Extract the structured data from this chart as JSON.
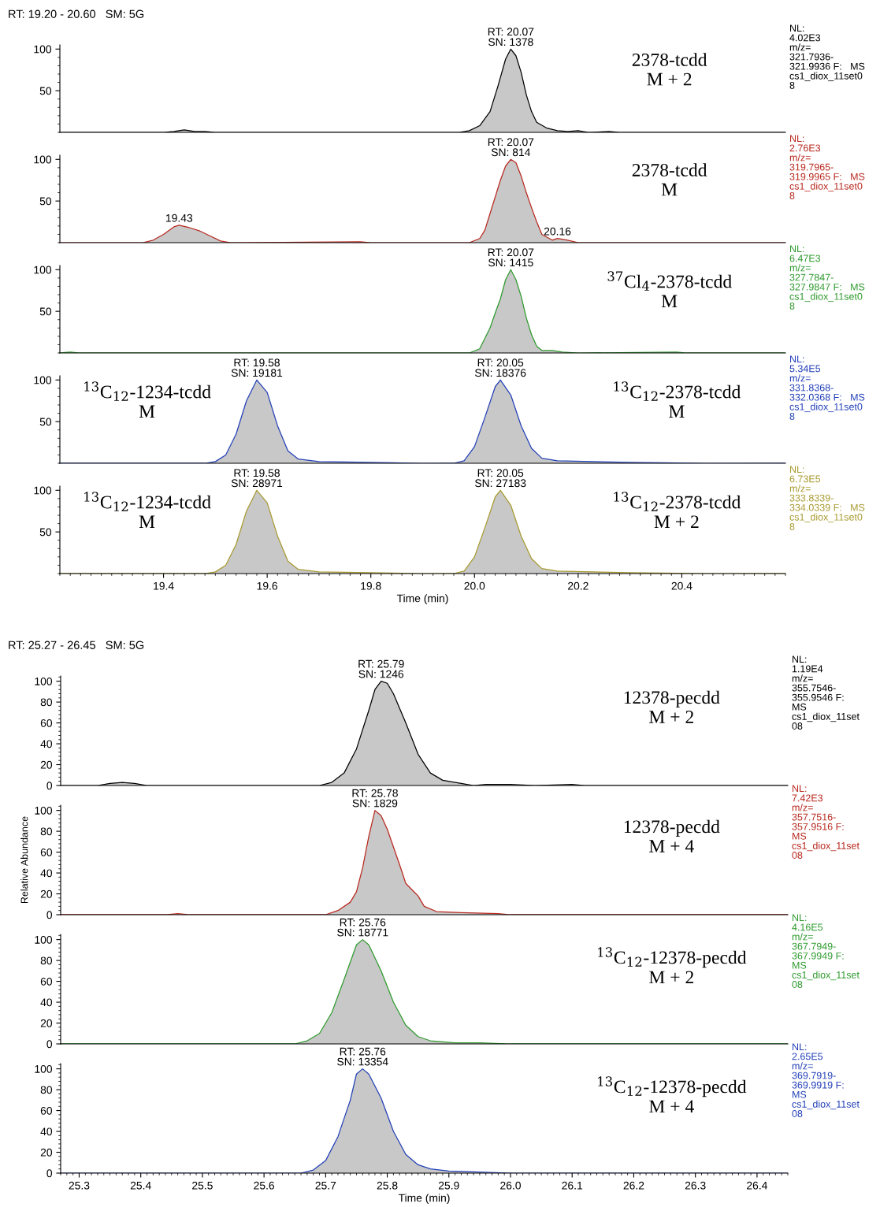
{
  "chart_data": [
    {
      "type": "area",
      "title": "RT: 19.20 - 20.60   SM: 5G",
      "xlim": [
        19.2,
        20.6
      ],
      "ylim": [
        0,
        105
      ],
      "yticks": [
        50,
        100
      ],
      "tick_labels": "y",
      "series": [
        {
          "color": "#000000",
          "x": [
            19.2,
            19.4,
            19.42,
            19.44,
            19.46,
            19.48,
            19.5,
            19.97,
            19.99,
            20.01,
            20.03,
            20.045,
            20.06,
            20.07,
            20.08,
            20.09,
            20.1,
            20.11,
            20.12,
            20.14,
            20.16,
            20.18,
            20.2,
            20.22,
            20.26,
            20.28,
            20.6
          ],
          "values": [
            0,
            0,
            1,
            3,
            1,
            1,
            0,
            0,
            2,
            8,
            25,
            55,
            88,
            100,
            92,
            72,
            45,
            25,
            12,
            5,
            2,
            1,
            2,
            0,
            1,
            0,
            0
          ]
        }
      ],
      "annotations": [
        {
          "text": "RT: 20.07\nSN: 1378",
          "x": 20.07,
          "y": 100
        },
        "2378-tcdd\nM + 2",
        "NL:\n4.02E3\nm/z=\n321.7936-\n321.9936 F:   MS\ncs1_diox_11set0\n8"
      ]
    },
    {
      "type": "area",
      "xlim": [
        19.2,
        20.6
      ],
      "ylim": [
        0,
        105
      ],
      "yticks": [
        50,
        100
      ],
      "tick_labels": "y",
      "series": [
        {
          "color": "#b8281e",
          "x": [
            19.2,
            19.36,
            19.38,
            19.4,
            19.42,
            19.43,
            19.45,
            19.47,
            19.49,
            19.51,
            19.53,
            19.78,
            19.8,
            19.99,
            20.01,
            20.02,
            20.03,
            20.04,
            20.05,
            20.06,
            20.07,
            20.08,
            20.09,
            20.1,
            20.11,
            20.12,
            20.13,
            20.15,
            20.16,
            20.18,
            20.2,
            20.6
          ],
          "values": [
            0,
            0,
            3,
            10,
            19,
            21,
            18,
            14,
            8,
            2,
            0,
            1,
            0,
            0,
            5,
            15,
            35,
            55,
            75,
            92,
            100,
            96,
            80,
            60,
            42,
            25,
            10,
            3,
            5,
            3,
            0,
            0
          ]
        }
      ],
      "annotations": [
        {
          "text": "RT: 20.07\nSN: 814",
          "x": 20.07,
          "y": 100
        },
        {
          "text": "19.43",
          "x": 19.43,
          "y": 21
        },
        {
          "text": "20.16",
          "x": 20.16,
          "y": 5
        },
        "2378-tcdd\nM",
        "NL:\n2.76E3\nm/z=\n319.7965-\n319.9965 F:   MS\ncs1_diox_11set0\n8"
      ]
    },
    {
      "type": "area",
      "xlim": [
        19.2,
        20.6
      ],
      "ylim": [
        0,
        105
      ],
      "yticks": [
        50,
        100
      ],
      "tick_labels": "y",
      "series": [
        {
          "color": "#2e9a2e",
          "x": [
            19.2,
            19.22,
            19.24,
            19.99,
            20.01,
            20.03,
            20.04,
            20.05,
            20.06,
            20.07,
            20.08,
            20.09,
            20.1,
            20.11,
            20.12,
            20.13,
            20.15,
            20.17,
            20.2,
            20.39,
            20.41,
            20.6
          ],
          "values": [
            0,
            1,
            0,
            0,
            5,
            30,
            48,
            65,
            88,
            100,
            88,
            68,
            42,
            22,
            8,
            3,
            3,
            1,
            0,
            1,
            0,
            0
          ]
        }
      ],
      "annotations": [
        {
          "text": "RT: 20.07\nSN: 1415",
          "x": 20.07,
          "y": 100
        },
        "$^{37}$Cl$_{4}$-2378-tcdd\nM",
        "NL:\n6.47E3\nm/z=\n327.7847-\n327.9847 F:   MS\ncs1_diox_11set0\n8"
      ]
    },
    {
      "type": "area",
      "xlim": [
        19.2,
        20.6
      ],
      "ylim": [
        0,
        105
      ],
      "yticks": [
        50,
        100
      ],
      "tick_labels": "y",
      "series": [
        {
          "color": "#2340b8",
          "x": [
            19.2,
            19.48,
            19.5,
            19.52,
            19.54,
            19.56,
            19.58,
            19.6,
            19.62,
            19.64,
            19.66,
            19.7,
            19.8,
            19.9,
            19.96,
            19.98,
            20.0,
            20.02,
            20.04,
            20.05,
            20.07,
            20.09,
            20.11,
            20.13,
            20.16,
            20.3,
            20.45,
            20.6
          ],
          "values": [
            0,
            0,
            2,
            10,
            35,
            75,
            100,
            85,
            45,
            15,
            5,
            2,
            1,
            0,
            0,
            3,
            20,
            55,
            92,
            100,
            82,
            45,
            18,
            6,
            3,
            1,
            0,
            0
          ]
        }
      ],
      "annotations": [
        {
          "text": "RT: 19.58\nSN: 19181",
          "x": 19.58,
          "y": 100
        },
        {
          "text": "RT: 20.05\nSN: 18376",
          "x": 20.05,
          "y": 100
        },
        "$^{13}$C$_{12}$-1234-tcdd\nM",
        "$^{13}$C$_{12}$-2378-tcdd\nM",
        "NL:\n5.34E5\nm/z=\n331.8368-\n332.0368 F:   MS\ncs1_diox_11set0\n8"
      ]
    },
    {
      "type": "area",
      "xlabel": "Time (min)",
      "xlim": [
        19.2,
        20.6
      ],
      "ylim": [
        0,
        105
      ],
      "xticks": [
        19.4,
        19.6,
        19.8,
        {
          "value": 20,
          "label": "20.0"
        },
        20.2,
        20.4
      ],
      "yticks": [
        50,
        100
      ],
      "series": [
        {
          "color": "#a89a30",
          "x": [
            19.2,
            19.48,
            19.5,
            19.52,
            19.54,
            19.56,
            19.58,
            19.6,
            19.62,
            19.64,
            19.66,
            19.7,
            19.8,
            19.9,
            19.96,
            19.98,
            20.0,
            20.02,
            20.04,
            20.05,
            20.07,
            20.09,
            20.11,
            20.13,
            20.16,
            20.3,
            20.45,
            20.6
          ],
          "values": [
            0,
            0,
            2,
            10,
            35,
            75,
            100,
            85,
            45,
            15,
            5,
            2,
            1,
            0,
            0,
            3,
            20,
            55,
            92,
            100,
            82,
            45,
            18,
            6,
            3,
            1,
            0,
            0
          ]
        }
      ],
      "annotations": [
        {
          "text": "RT: 19.58\nSN: 28971",
          "x": 19.58,
          "y": 100
        },
        {
          "text": "RT: 20.05\nSN: 27183",
          "x": 20.05,
          "y": 100
        },
        "$^{13}$C$_{12}$-1234-tcdd\nM",
        "$^{13}$C$_{12}$-2378-tcdd\nM + 2",
        "NL:\n6.73E5\nm/z=\n333.8339-\n334.0339 F:   MS\ncs1_diox_11set0\n8"
      ]
    },
    {
      "type": "area",
      "title": "RT: 25.27 - 26.45   SM: 5G",
      "xlim": [
        25.27,
        26.45
      ],
      "ylim": [
        0,
        105
      ],
      "yticks": [
        0,
        20,
        40,
        60,
        80,
        100
      ],
      "tick_labels": "y",
      "series": [
        {
          "color": "#000000",
          "x": [
            25.27,
            25.33,
            25.35,
            25.37,
            25.39,
            25.41,
            25.69,
            25.71,
            25.73,
            25.75,
            25.77,
            25.78,
            25.79,
            25.8,
            25.81,
            25.83,
            25.85,
            25.87,
            25.89,
            25.92,
            25.94,
            25.96,
            26.0,
            26.04,
            26.1,
            26.12,
            26.45
          ],
          "values": [
            0,
            0,
            2,
            3,
            2,
            0,
            0,
            3,
            12,
            35,
            72,
            92,
            100,
            98,
            88,
            60,
            30,
            12,
            5,
            2,
            0,
            1,
            1,
            0,
            1,
            0,
            0
          ]
        }
      ],
      "annotations": [
        {
          "text": "RT: 25.79\nSN: 1246",
          "x": 25.79,
          "y": 100
        },
        "12378-pecdd\nM + 2",
        "NL:\n1.19E4\nm/z=\n355.7546-\n355.9546 F:\nMS\ncs1_diox_11set\n08"
      ]
    },
    {
      "type": "area",
      "ylabel": "Relative Abundance",
      "xlim": [
        25.27,
        26.45
      ],
      "ylim": [
        0,
        105
      ],
      "yticks": [
        0,
        20,
        40,
        60,
        80,
        100
      ],
      "tick_labels": "y",
      "series": [
        {
          "color": "#b8281e",
          "x": [
            25.27,
            25.44,
            25.46,
            25.48,
            25.7,
            25.72,
            25.74,
            25.75,
            25.76,
            25.77,
            25.78,
            25.79,
            25.8,
            25.81,
            25.82,
            25.83,
            25.84,
            25.85,
            25.86,
            25.88,
            25.92,
            25.98,
            26.0,
            26.45
          ],
          "values": [
            0,
            0,
            1,
            0,
            0,
            4,
            12,
            22,
            45,
            75,
            100,
            95,
            82,
            65,
            48,
            30,
            24,
            18,
            8,
            3,
            2,
            1,
            0,
            0
          ]
        }
      ],
      "annotations": [
        {
          "text": "RT: 25.78\nSN: 1829",
          "x": 25.78,
          "y": 100
        },
        "12378-pecdd\nM + 4",
        "NL:\n7.42E3\nm/z=\n357.7516-\n357.9516 F:\nMS\ncs1_diox_11set\n08"
      ]
    },
    {
      "type": "area",
      "xlim": [
        25.27,
        26.45
      ],
      "ylim": [
        0,
        105
      ],
      "yticks": [
        0,
        20,
        40,
        60,
        80,
        100
      ],
      "tick_labels": "y",
      "series": [
        {
          "color": "#2e9a2e",
          "x": [
            25.27,
            25.65,
            25.67,
            25.69,
            25.71,
            25.73,
            25.75,
            25.76,
            25.77,
            25.79,
            25.81,
            25.83,
            25.85,
            25.87,
            25.91,
            25.95,
            26.0,
            26.45
          ],
          "values": [
            0,
            0,
            3,
            10,
            30,
            62,
            95,
            100,
            95,
            70,
            40,
            18,
            7,
            3,
            1,
            1,
            0,
            0
          ]
        }
      ],
      "annotations": [
        {
          "text": "RT: 25.76\nSN: 18771",
          "x": 25.76,
          "y": 100
        },
        "$^{13}$C$_{12}$-12378-pecdd\nM + 2",
        "NL:\n4.16E5\nm/z=\n367.7949-\n367.9949 F:\nMS\ncs1_diox_11set\n08"
      ]
    },
    {
      "type": "area",
      "xlabel": "Time (min)",
      "xlim": [
        25.27,
        26.45
      ],
      "ylim": [
        0,
        105
      ],
      "xticks": [
        25.3,
        25.4,
        25.5,
        25.6,
        25.7,
        25.8,
        25.9,
        {
          "value": 26,
          "label": "26.0"
        },
        26.1,
        26.2,
        26.3,
        26.4
      ],
      "yticks": [
        0,
        20,
        40,
        60,
        80,
        100
      ],
      "series": [
        {
          "color": "#2340b8",
          "x": [
            25.27,
            25.66,
            25.68,
            25.7,
            25.72,
            25.74,
            25.75,
            25.76,
            25.77,
            25.79,
            25.81,
            25.83,
            25.85,
            25.87,
            25.9,
            25.95,
            26.0,
            26.45
          ],
          "values": [
            0,
            0,
            3,
            12,
            35,
            70,
            95,
            100,
            95,
            72,
            40,
            18,
            8,
            4,
            2,
            1,
            0,
            0
          ]
        }
      ],
      "annotations": [
        {
          "text": "RT: 25.76\nSN: 13354",
          "x": 25.76,
          "y": 100
        },
        "$^{13}$C$_{12}$-12378-pecdd\nM + 4",
        "NL:\n2.65E5\nm/z=\n369.7919-\n369.9919 F:\nMS\ncs1_diox_11set\n08"
      ]
    }
  ]
}
